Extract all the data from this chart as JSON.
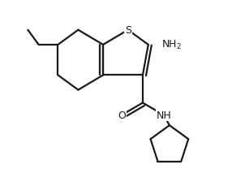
{
  "bg_color": "#ffffff",
  "line_color": "#1a1a1a",
  "line_width": 1.6,
  "figsize": [
    2.86,
    2.3
  ],
  "dpi": 100,
  "xlim": [
    0,
    1
  ],
  "ylim": [
    0,
    1
  ]
}
